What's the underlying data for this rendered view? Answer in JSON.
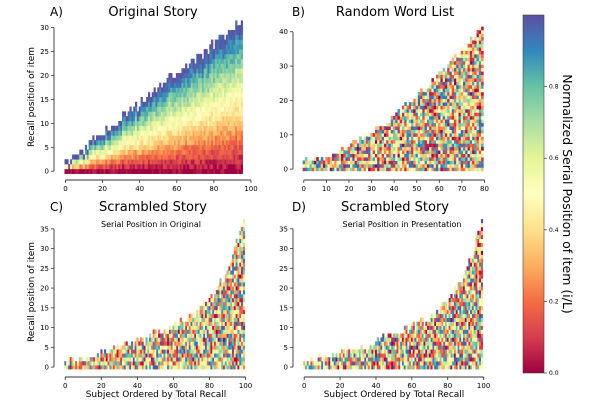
{
  "figure": {
    "colorbar": {
      "label": "Normalized Serial Position of item (i/L)",
      "ticks": [
        "0.0",
        "0.2",
        "0.4",
        "0.6",
        "0.8"
      ],
      "range": [
        0,
        1
      ],
      "colormap": "Spectral",
      "colormap_stops": [
        "#9e0142",
        "#d53e4f",
        "#f46d43",
        "#fdae61",
        "#fee08b",
        "#ffffbf",
        "#e6f598",
        "#abdda4",
        "#66c2a5",
        "#3288bd",
        "#5e4fa2"
      ]
    }
  },
  "chart_data": [
    {
      "type": "heatmap",
      "letter": "A)",
      "title": "Original Story",
      "subtitle": "",
      "xlabel": "",
      "ylabel": "Recall position of item",
      "xlim": [
        -4,
        100
      ],
      "ylim": [
        -1,
        32
      ],
      "xticks": [
        0,
        20,
        40,
        60,
        80,
        100
      ],
      "yticks": [
        0,
        5,
        10,
        15,
        20,
        25,
        30
      ],
      "n_subjects": 96,
      "recall_min": 1,
      "recall_max": 31,
      "recall_curve": "linear",
      "color_mode": "ordered"
    },
    {
      "type": "heatmap",
      "letter": "B)",
      "title": "Random Word List",
      "subtitle": "",
      "xlabel": "",
      "ylabel": "",
      "xlim": [
        -3,
        82
      ],
      "ylim": [
        -2,
        44
      ],
      "xticks": [
        0,
        10,
        20,
        30,
        40,
        50,
        60,
        70,
        80
      ],
      "yticks": [
        0,
        10,
        20,
        30,
        40
      ],
      "n_subjects": 80,
      "recall_min": 2,
      "recall_max": 41,
      "recall_curve": "steep",
      "color_mode": "random"
    },
    {
      "type": "heatmap",
      "letter": "C)",
      "title": "Scrambled Story",
      "subtitle": "Serial Position in Original",
      "xlabel": "Subject Ordered by Total Recall",
      "ylabel": "Recall position of item",
      "xlim": [
        -4,
        103
      ],
      "ylim": [
        -1.5,
        39
      ],
      "xticks": [
        0,
        20,
        40,
        60,
        80,
        100
      ],
      "yticks": [
        0,
        5,
        10,
        15,
        20,
        25,
        30,
        35
      ],
      "n_subjects": 100,
      "recall_min": 1,
      "recall_max": 38,
      "recall_curve": "convex",
      "color_mode": "random"
    },
    {
      "type": "heatmap",
      "letter": "D)",
      "title": "Scrambled Story",
      "subtitle": "Serial Position in Presentation",
      "xlabel": "Subject Ordered by Total Recall",
      "ylabel": "",
      "xlim": [
        -4,
        103
      ],
      "ylim": [
        -1.5,
        39
      ],
      "xticks": [
        0,
        20,
        40,
        60,
        80,
        100
      ],
      "yticks": [
        0,
        5,
        10,
        15,
        20,
        25,
        30,
        35
      ],
      "n_subjects": 100,
      "recall_min": 1,
      "recall_max": 37,
      "recall_curve": "convex",
      "color_mode": "random"
    }
  ]
}
